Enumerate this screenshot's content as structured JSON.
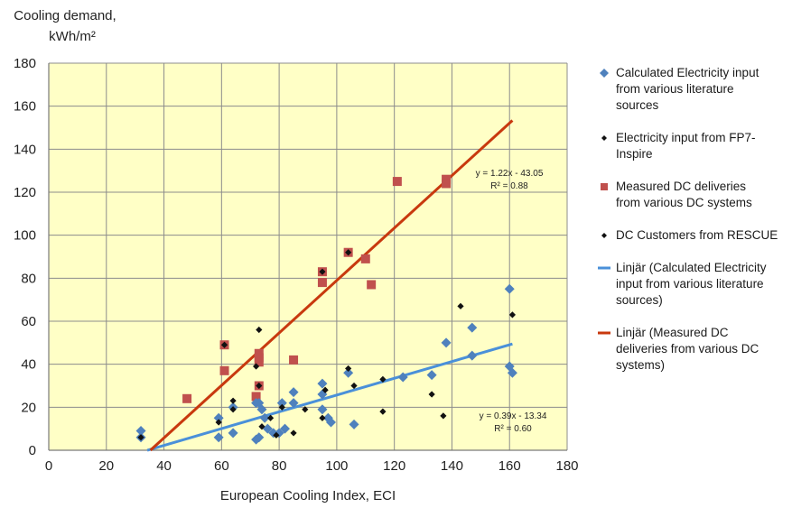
{
  "chart_data": {
    "type": "scatter",
    "ylabel_lines": [
      "Cooling demand,",
      "kWh/m²"
    ],
    "xlabel": "European Cooling Index, ECI",
    "xlim": [
      0,
      180
    ],
    "ylim": [
      0,
      180
    ],
    "xticks": [
      "0",
      "20",
      "40",
      "60",
      "80",
      "100",
      "120",
      "140",
      "160",
      "180"
    ],
    "yticks": [
      "0",
      "20",
      "40",
      "60",
      "80",
      "100",
      "120",
      "140",
      "160",
      "180"
    ],
    "grid": true,
    "plot_bg": "#FFFFC6",
    "legend_position": "right",
    "series": [
      {
        "name": "Calculated Electricity input from various literature sources",
        "marker": "diamond",
        "color": "#4F81BD",
        "points": [
          [
            32,
            9
          ],
          [
            32,
            6
          ],
          [
            59,
            15
          ],
          [
            59,
            6
          ],
          [
            64,
            8
          ],
          [
            64,
            20
          ],
          [
            72,
            5
          ],
          [
            72,
            22
          ],
          [
            73,
            6
          ],
          [
            73,
            22
          ],
          [
            74,
            19
          ],
          [
            75,
            15
          ],
          [
            76,
            10
          ],
          [
            78,
            8
          ],
          [
            80,
            8
          ],
          [
            81,
            22
          ],
          [
            82,
            10
          ],
          [
            85,
            22
          ],
          [
            85,
            27
          ],
          [
            95,
            31
          ],
          [
            95,
            26
          ],
          [
            95,
            19
          ],
          [
            97,
            15
          ],
          [
            98,
            13
          ],
          [
            104,
            36
          ],
          [
            106,
            12
          ],
          [
            123,
            34
          ],
          [
            133,
            35
          ],
          [
            138,
            50
          ],
          [
            147,
            57
          ],
          [
            147,
            44
          ],
          [
            160,
            39
          ],
          [
            161,
            36
          ],
          [
            160,
            75
          ]
        ]
      },
      {
        "name": "Electricity input from FP7-Inspire",
        "marker": "diamond-small",
        "color": "#111111",
        "points": [
          [
            32,
            6
          ],
          [
            59,
            13
          ],
          [
            61,
            49
          ],
          [
            64,
            23
          ],
          [
            64,
            19
          ],
          [
            72,
            39
          ],
          [
            73,
            56
          ],
          [
            73,
            30
          ],
          [
            74,
            11
          ],
          [
            77,
            15
          ],
          [
            79,
            7
          ],
          [
            81,
            20
          ],
          [
            85,
            8
          ],
          [
            89,
            19
          ],
          [
            95,
            83
          ],
          [
            95,
            15
          ],
          [
            96,
            28
          ],
          [
            104,
            92
          ],
          [
            104,
            38
          ],
          [
            106,
            30
          ],
          [
            116,
            33
          ],
          [
            116,
            18
          ],
          [
            133,
            26
          ],
          [
            137,
            16
          ],
          [
            143,
            67
          ],
          [
            161,
            63
          ]
        ]
      },
      {
        "name": "Measured DC deliveries from various DC systems",
        "marker": "square",
        "color": "#C0504D",
        "points": [
          [
            48,
            24
          ],
          [
            61,
            49
          ],
          [
            61,
            37
          ],
          [
            72,
            25
          ],
          [
            73,
            45
          ],
          [
            73,
            43
          ],
          [
            73,
            41
          ],
          [
            73,
            30
          ],
          [
            85,
            42
          ],
          [
            95,
            83
          ],
          [
            95,
            78
          ],
          [
            104,
            92
          ],
          [
            110,
            89
          ],
          [
            112,
            77
          ],
          [
            121,
            125
          ],
          [
            138,
            126
          ],
          [
            138,
            124
          ]
        ]
      },
      {
        "name": "DC Customers from RESCUE",
        "marker": "diamond-small",
        "color": "#111111",
        "points": []
      }
    ],
    "trendlines": [
      {
        "name": "Linjär (Calculated Electricity input from various literature sources)",
        "color": "#4A90D9",
        "slope": 0.39,
        "intercept": -13.34,
        "x_range": [
          34.2,
          161
        ],
        "equation": "y = 0.39x - 13.34",
        "r2": "R² = 0.60"
      },
      {
        "name": "Linjär (Measured DC deliveries from various DC systems)",
        "color": "#C8390E",
        "slope": 1.22,
        "intercept": -43.05,
        "x_range": [
          35.3,
          161
        ],
        "equation": "y = 1.22x - 43.05",
        "r2": "R² = 0.88"
      }
    ]
  },
  "legend": [
    {
      "label_lines": [
        "Calculated Electricity input",
        "from various literature",
        "sources"
      ],
      "marker": "diamond",
      "color": "#4F81BD"
    },
    {
      "label_lines": [
        "Electricity input from FP7-",
        "Inspire"
      ],
      "marker": "diamond-small",
      "color": "#111111"
    },
    {
      "label_lines": [
        "Measured DC deliveries",
        "from various DC systems"
      ],
      "marker": "square",
      "color": "#C0504D"
    },
    {
      "label_lines": [
        "DC Customers from RESCUE"
      ],
      "marker": "diamond-small",
      "color": "#111111"
    },
    {
      "label_lines": [
        "Linjär (Calculated Electricity",
        "input from various literature",
        "sources)"
      ],
      "marker": "line",
      "color": "#4A90D9"
    },
    {
      "label_lines": [
        "Linjär (Measured DC",
        "deliveries from various DC",
        "systems)"
      ],
      "marker": "line",
      "color": "#C8390E"
    }
  ]
}
